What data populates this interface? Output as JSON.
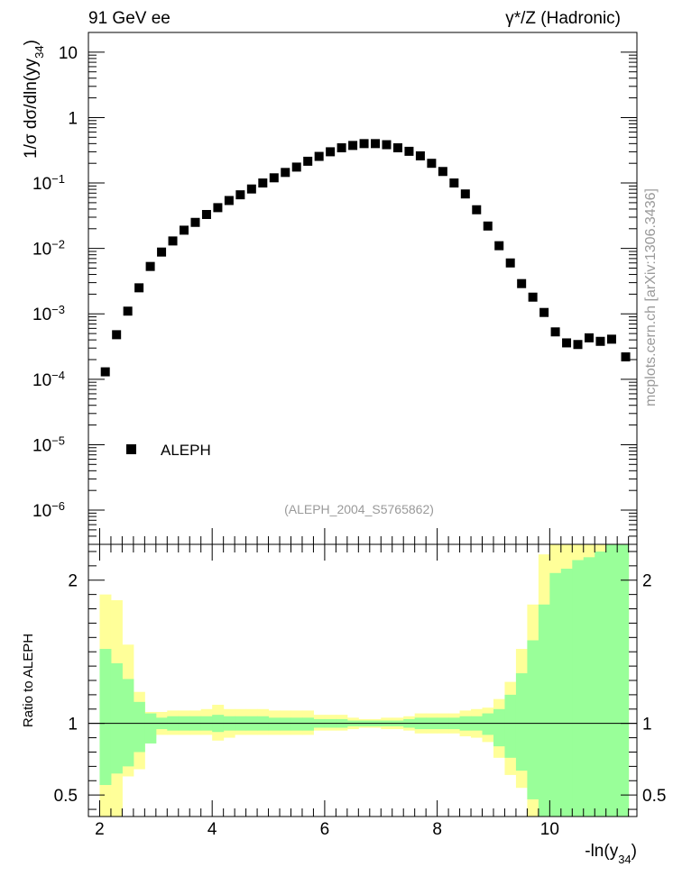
{
  "header": {
    "left": "91 GeV ee",
    "right": "γ*/Z (Hadronic)"
  },
  "side_text": "mcplots.cern.ch [arXiv:1306.3436]",
  "analysis_label": "(ALEPH_2004_S5765862)",
  "chart_data": [
    {
      "type": "scatter",
      "panel": "main",
      "ylabel": "1/σ dσ/dln(y34)",
      "yscale": "log",
      "ylim": [
        3e-07,
        20
      ],
      "xlim": [
        1.8,
        11.55
      ],
      "y_ticks": [
        {
          "value": 10,
          "label": "10"
        },
        {
          "value": 1,
          "label": "1"
        },
        {
          "value": 0.1,
          "label": "10",
          "sup": "−1"
        },
        {
          "value": 0.01,
          "label": "10",
          "sup": "−2"
        },
        {
          "value": 0.001,
          "label": "10",
          "sup": "−3"
        },
        {
          "value": 0.0001,
          "label": "10",
          "sup": "−4"
        },
        {
          "value": 1e-05,
          "label": "10",
          "sup": "−5"
        },
        {
          "value": 1e-06,
          "label": "10",
          "sup": "−6"
        }
      ],
      "legend": {
        "entries": [
          "ALEPH"
        ],
        "placement": "lower-left"
      },
      "series": [
        {
          "name": "ALEPH",
          "marker": "square",
          "color": "#000000",
          "x": [
            2.1,
            2.3,
            2.5,
            2.7,
            2.9,
            3.1,
            3.3,
            3.5,
            3.7,
            3.9,
            4.1,
            4.3,
            4.5,
            4.7,
            4.9,
            5.1,
            5.3,
            5.5,
            5.7,
            5.9,
            6.1,
            6.3,
            6.5,
            6.7,
            6.9,
            7.1,
            7.3,
            7.5,
            7.7,
            7.9,
            8.1,
            8.3,
            8.5,
            8.7,
            8.9,
            9.1,
            9.3,
            9.5,
            9.7,
            9.9,
            10.1,
            10.3,
            10.5,
            10.7,
            10.9,
            11.1,
            11.35
          ],
          "y": [
            0.00013,
            0.00048,
            0.0011,
            0.0025,
            0.0053,
            0.0088,
            0.013,
            0.019,
            0.025,
            0.033,
            0.042,
            0.054,
            0.066,
            0.081,
            0.1,
            0.12,
            0.145,
            0.175,
            0.215,
            0.255,
            0.3,
            0.345,
            0.375,
            0.4,
            0.4,
            0.385,
            0.345,
            0.305,
            0.26,
            0.2,
            0.15,
            0.1,
            0.068,
            0.039,
            0.022,
            0.011,
            0.006,
            0.0029,
            0.0018,
            0.00105,
            0.00053,
            0.00036,
            0.00034,
            0.00043,
            0.00038,
            0.00041,
            0.00022
          ]
        }
      ]
    },
    {
      "type": "area",
      "panel": "ratio",
      "ylabel": "Ratio to ALEPH",
      "xlabel": "-ln(y34)",
      "ylim": [
        0.35,
        2.25
      ],
      "xlim": [
        1.8,
        11.55
      ],
      "x_ticks": [
        2,
        4,
        6,
        8,
        10
      ],
      "y_ticks": [
        0.5,
        1,
        2
      ],
      "reference_line": 1,
      "bin_edges": [
        2.0,
        2.2,
        2.4,
        2.6,
        2.8,
        3.0,
        3.2,
        3.4,
        3.6,
        3.8,
        4.0,
        4.2,
        4.4,
        4.6,
        4.8,
        5.0,
        5.2,
        5.4,
        5.6,
        5.8,
        6.0,
        6.2,
        6.4,
        6.6,
        6.8,
        7.0,
        7.2,
        7.4,
        7.6,
        7.8,
        8.0,
        8.2,
        8.4,
        8.6,
        8.8,
        9.0,
        9.2,
        9.4,
        9.6,
        9.8,
        10.0,
        10.2,
        10.4,
        10.6,
        10.8,
        11.0,
        11.2,
        11.4
      ],
      "bands": [
        {
          "name": "",
          "color": "#ffff99",
          "lower": [
            0.3,
            0.3,
            0.63,
            0.68,
            0.9,
            0.92,
            0.92,
            0.92,
            0.92,
            0.92,
            0.88,
            0.9,
            0.92,
            0.92,
            0.92,
            0.92,
            0.92,
            0.92,
            0.92,
            0.95,
            0.95,
            0.95,
            0.96,
            0.97,
            0.97,
            0.96,
            0.96,
            0.95,
            0.93,
            0.93,
            0.93,
            0.93,
            0.91,
            0.9,
            0.87,
            0.76,
            0.64,
            0.55,
            0.25,
            0.3,
            0.3,
            0.3,
            0.3,
            0.3,
            0.3,
            0.3,
            0.3
          ],
          "upper": [
            1.9,
            1.86,
            1.55,
            1.22,
            1.08,
            1.08,
            1.09,
            1.09,
            1.09,
            1.1,
            1.13,
            1.1,
            1.1,
            1.1,
            1.1,
            1.09,
            1.09,
            1.09,
            1.09,
            1.06,
            1.06,
            1.06,
            1.04,
            1.03,
            1.03,
            1.04,
            1.04,
            1.05,
            1.07,
            1.07,
            1.07,
            1.07,
            1.09,
            1.1,
            1.11,
            1.17,
            1.29,
            1.52,
            1.83,
            2.18,
            2.3,
            2.3,
            2.3,
            2.3,
            2.3,
            2.3,
            2.3
          ]
        },
        {
          "name": "",
          "color": "#99ff99",
          "lower": [
            0.57,
            0.65,
            0.7,
            0.8,
            0.86,
            0.96,
            0.95,
            0.95,
            0.95,
            0.95,
            0.94,
            0.95,
            0.95,
            0.95,
            0.95,
            0.95,
            0.95,
            0.95,
            0.95,
            0.97,
            0.97,
            0.97,
            0.98,
            0.98,
            0.98,
            0.98,
            0.98,
            0.97,
            0.96,
            0.96,
            0.96,
            0.96,
            0.95,
            0.95,
            0.92,
            0.84,
            0.76,
            0.67,
            0.47,
            0.32,
            0.3,
            0.3,
            0.3,
            0.3,
            0.3,
            0.3,
            0.3
          ],
          "upper": [
            1.52,
            1.42,
            1.31,
            1.15,
            1.07,
            1.04,
            1.05,
            1.05,
            1.05,
            1.05,
            1.06,
            1.05,
            1.05,
            1.05,
            1.05,
            1.04,
            1.04,
            1.04,
            1.04,
            1.03,
            1.03,
            1.03,
            1.02,
            1.02,
            1.02,
            1.02,
            1.02,
            1.03,
            1.04,
            1.04,
            1.04,
            1.04,
            1.05,
            1.05,
            1.07,
            1.1,
            1.2,
            1.35,
            1.58,
            1.83,
            2.05,
            2.08,
            2.14,
            2.16,
            2.2,
            2.25,
            2.25
          ]
        }
      ]
    }
  ]
}
